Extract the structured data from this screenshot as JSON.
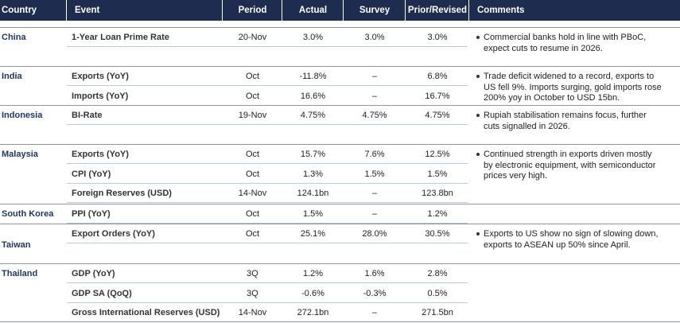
{
  "header": {
    "columns": [
      "Country",
      "Event",
      "Period",
      "Actual",
      "Survey",
      "Prior/Revised",
      "Comments"
    ]
  },
  "groups": [
    {
      "country": "China",
      "rows": [
        [
          "1-Year Loan Prime Rate",
          "20-Nov",
          "3.0%",
          "3.0%",
          "3.0%"
        ]
      ],
      "comment": [
        "Commercial banks hold in line with PBoC,",
        "expect cuts to resume in 2026."
      ]
    },
    {
      "country": "India",
      "rows": [
        [
          "Exports (YoY)",
          "Oct",
          "-11.8%",
          "–",
          "6.8%"
        ],
        [
          "Imports (YoY)",
          "Oct",
          "16.6%",
          "–",
          "16.7%"
        ]
      ],
      "comment": [
        "Trade deficit widened to a record, exports to",
        "US fell 9%. Imports surging, gold imports rose",
        "200% yoy in October to USD 15bn."
      ]
    },
    {
      "country": "Indonesia",
      "rows": [
        [
          "BI-Rate",
          "19-Nov",
          "4.75%",
          "4.75%",
          "4.75%"
        ]
      ],
      "comment": [
        "Rupiah stabilisation remains focus, further",
        "cuts signalled in 2026."
      ]
    },
    {
      "country": "Malaysia",
      "rows": [
        [
          "Exports (YoY)",
          "Oct",
          "15.7%",
          "7.6%",
          "12.5%"
        ],
        [
          "CPI (YoY)",
          "Oct",
          "1.3%",
          "1.5%",
          "1.5%"
        ],
        [
          "Foreign Reserves (USD)",
          "14-Nov",
          "124.1bn",
          "–",
          "123.8bn"
        ]
      ],
      "comment": [
        "Continued strength in exports driven mostly",
        "by electronic equipment, with semiconductor",
        "prices very high."
      ]
    },
    {
      "country": "South Korea",
      "rows": [
        [
          "PPI (YoY)",
          "Oct",
          "1.5%",
          "–",
          "1.2%"
        ]
      ],
      "comment": []
    },
    {
      "country": "Taiwan",
      "rows": [
        [
          "Export Orders (YoY)",
          "Oct",
          "25.1%",
          "28.0%",
          "30.5%"
        ]
      ],
      "comment": [
        "Exports to US show no sign of slowing down,",
        "exports to ASEAN up 50% since April."
      ]
    },
    {
      "country": "Thailand",
      "rows": [
        [
          "GDP (YoY)",
          "3Q",
          "1.2%",
          "1.6%",
          "2.8%"
        ],
        [
          "GDP SA (QoQ)",
          "3Q",
          "-0.6%",
          "-0.3%",
          "0.5%"
        ],
        [
          "Gross International Reserves (USD)",
          "14-Nov",
          "272.1bn",
          "–",
          "271.5bn"
        ]
      ],
      "comment": []
    }
  ]
}
